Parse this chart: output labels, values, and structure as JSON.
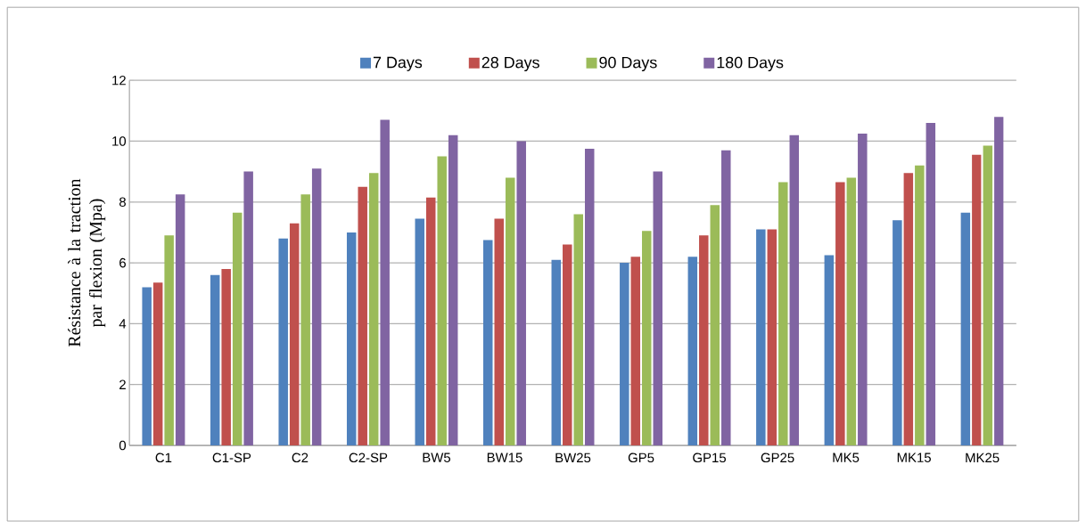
{
  "chart_data": {
    "type": "bar",
    "ylabel": "Résistance à la traction par flexion (Mpa)",
    "categories": [
      "C1",
      "C1-SP",
      "C2",
      "C2-SP",
      "BW5",
      "BW15",
      "BW25",
      "GP5",
      "GP15",
      "GP25",
      "MK5",
      "MK15",
      "MK25"
    ],
    "series": [
      {
        "name": "7 Days",
        "color": "#4f81bd",
        "values": [
          5.2,
          5.6,
          6.8,
          7.0,
          7.45,
          6.75,
          6.1,
          6.0,
          6.2,
          7.1,
          6.25,
          7.4,
          7.65
        ]
      },
      {
        "name": "28 Days",
        "color": "#c0504d",
        "values": [
          5.35,
          5.8,
          7.3,
          8.5,
          8.15,
          7.45,
          6.6,
          6.2,
          6.9,
          7.1,
          8.65,
          8.95,
          9.55
        ]
      },
      {
        "name": "90 Days",
        "color": "#9bbb59",
        "values": [
          6.9,
          7.65,
          8.25,
          8.95,
          9.5,
          8.8,
          7.6,
          7.05,
          7.9,
          8.65,
          8.8,
          9.2,
          9.85
        ]
      },
      {
        "name": "180 Days",
        "color": "#8064a2",
        "values": [
          8.25,
          9.0,
          9.1,
          10.7,
          10.2,
          10.0,
          9.75,
          9.0,
          9.7,
          10.2,
          10.25,
          10.6,
          10.8
        ]
      }
    ],
    "ylim": [
      0,
      12
    ],
    "yticks": [
      0,
      2,
      4,
      6,
      8,
      10,
      12
    ],
    "grid": "y",
    "legend": "top"
  }
}
